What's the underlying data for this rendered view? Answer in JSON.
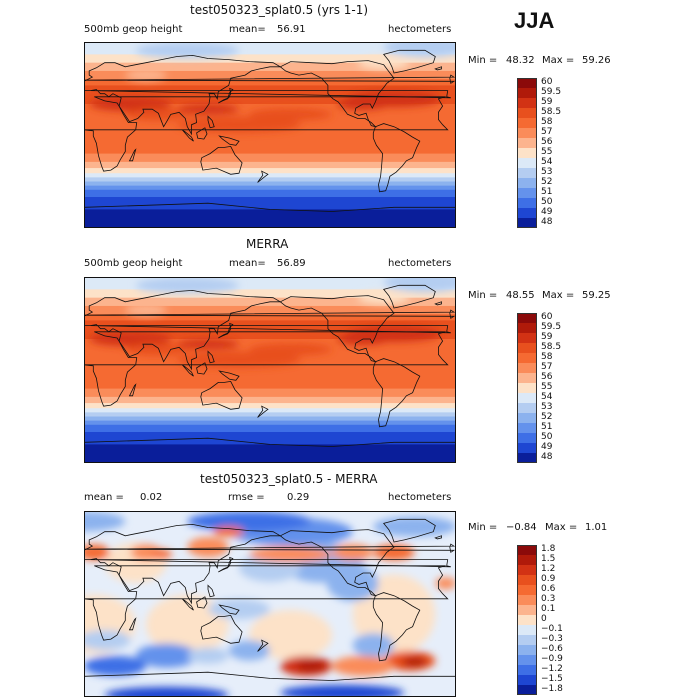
{
  "season": "JJA",
  "panels": [
    {
      "title": "test050323_splat0.5 (yrs 1-1)",
      "field": "500mb geop height",
      "mean_label": "mean=",
      "mean_value": "56.91",
      "units": "hectometers",
      "min_label": "Min =",
      "min_value": "48.32",
      "max_label": "Max =",
      "max_value": "59.26",
      "colorbar": [
        "60",
        "59.5",
        "59",
        "58.5",
        "58",
        "57",
        "56",
        "55",
        "54",
        "53",
        "52",
        "51",
        "50",
        "49",
        "48"
      ],
      "colors": [
        "#8b0a0a",
        "#b01a0a",
        "#d23214",
        "#e8501e",
        "#f56a32",
        "#fa8c5a",
        "#fcb48e",
        "#fde2c8",
        "#dce9f7",
        "#b4cdf1",
        "#8cb2ee",
        "#6492ec",
        "#3e6fe6",
        "#1e46d2",
        "#0a1e9a"
      ],
      "chart_data": {
        "type": "heatmap",
        "variable": "500mb geopotential height",
        "units": "hectometers",
        "mean": 56.91,
        "min": 48.32,
        "max": 59.26,
        "levels": [
          48,
          49,
          50,
          51,
          52,
          53,
          54,
          55,
          56,
          57,
          58,
          58.5,
          59,
          59.5,
          60
        ]
      }
    },
    {
      "title": "MERRA",
      "field": "500mb geop height",
      "mean_label": "mean=",
      "mean_value": "56.89",
      "units": "hectometers",
      "min_label": "Min =",
      "min_value": "48.55",
      "max_label": "Max =",
      "max_value": "59.25",
      "colorbar": [
        "60",
        "59.5",
        "59",
        "58.5",
        "58",
        "57",
        "56",
        "55",
        "54",
        "53",
        "52",
        "51",
        "50",
        "49",
        "48"
      ],
      "colors": [
        "#8b0a0a",
        "#b01a0a",
        "#d23214",
        "#e8501e",
        "#f56a32",
        "#fa8c5a",
        "#fcb48e",
        "#fde2c8",
        "#dce9f7",
        "#b4cdf1",
        "#8cb2ee",
        "#6492ec",
        "#3e6fe6",
        "#1e46d2",
        "#0a1e9a"
      ],
      "chart_data": {
        "type": "heatmap",
        "variable": "500mb geopotential height",
        "units": "hectometers",
        "mean": 56.89,
        "min": 48.55,
        "max": 59.25,
        "levels": [
          48,
          49,
          50,
          51,
          52,
          53,
          54,
          55,
          56,
          57,
          58,
          58.5,
          59,
          59.5,
          60
        ]
      }
    },
    {
      "title": "test050323_splat0.5 - MERRA",
      "mean_label": "mean =",
      "mean_value": "0.02",
      "rmse_label": "rmse =",
      "rmse_value": "0.29",
      "units": "hectometers",
      "min_label": "Min =",
      "min_value": "−0.84",
      "max_label": "Max =",
      "max_value": "1.01",
      "colorbar": [
        "1.8",
        "1.5",
        "1.2",
        "0.9",
        "0.6",
        "0.3",
        "0.1",
        "0",
        "−0.1",
        "−0.3",
        "−0.6",
        "−0.9",
        "−1.2",
        "−1.5",
        "−1.8"
      ],
      "colors": [
        "#8b0a0a",
        "#b01a0a",
        "#d23214",
        "#e8501e",
        "#f56a32",
        "#fa8c5a",
        "#fcb48e",
        "#fde2c8",
        "#dce9f7",
        "#b4cdf1",
        "#8cb2ee",
        "#6492ec",
        "#3e6fe6",
        "#1e46d2",
        "#0a1e9a"
      ],
      "chart_data": {
        "type": "heatmap",
        "variable": "500mb geopotential height difference",
        "units": "hectometers",
        "mean": 0.02,
        "rmse": 0.29,
        "min": -0.84,
        "max": 1.01,
        "levels": [
          -1.8,
          -1.5,
          -1.2,
          -0.9,
          -0.6,
          -0.3,
          -0.1,
          0,
          0.1,
          0.3,
          0.6,
          0.9,
          1.2,
          1.5,
          1.8
        ]
      }
    }
  ]
}
